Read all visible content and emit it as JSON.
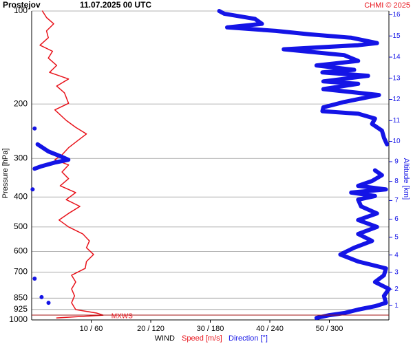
{
  "chart_data": {
    "type": "profile",
    "title": "Prostejov",
    "subtitle": "11.07.2025 00 UTC",
    "source": "CHMI © 2025",
    "xlabel": "WIND",
    "ylabel": "Pressure [hPa]",
    "y2label": "Altitude [km]",
    "annotation": "MXWS",
    "ylim": [
      100,
      1000
    ],
    "yscale": "log",
    "yticks": [
      100,
      200,
      300,
      400,
      500,
      600,
      700,
      850,
      925,
      1000
    ],
    "y2ticks": [
      1,
      2,
      3,
      4,
      5,
      6,
      7,
      8,
      9,
      10,
      11,
      12,
      13,
      14,
      15,
      16
    ],
    "xlim": [
      0,
      60
    ],
    "x2lim": [
      0,
      360
    ],
    "xticks": [
      {
        "value": 10,
        "label": "10 / 60"
      },
      {
        "value": 20,
        "label": "20 / 120"
      },
      {
        "value": 30,
        "label": "30 / 180"
      },
      {
        "value": 40,
        "label": "40 / 240"
      },
      {
        "value": 50,
        "label": "50 / 300"
      }
    ],
    "grid": true,
    "series": [
      {
        "name": "Speed [m/s]",
        "color": "#e8121a",
        "pressure": [
          100,
          105,
          110,
          116,
          122,
          129,
          135,
          142,
          150,
          158,
          166,
          175,
          184,
          199,
          209,
          226,
          238,
          250,
          264,
          277,
          292,
          303,
          315,
          332,
          349,
          368,
          387,
          408,
          429,
          452,
          475,
          500,
          527,
          555,
          584,
          614,
          647,
          681,
          717,
          754,
          794,
          836,
          880,
          926,
          950,
          965,
          985
        ],
        "values": [
          1.8,
          2.5,
          3.7,
          2.5,
          2.8,
          1.4,
          3.5,
          2.8,
          4.2,
          3.0,
          6.2,
          4.2,
          5.5,
          6.2,
          3.9,
          5.8,
          7.4,
          9.2,
          7.6,
          6.2,
          5.1,
          3.9,
          6.2,
          5.1,
          6.2,
          4.8,
          7.4,
          5.8,
          8.1,
          6.2,
          4.6,
          6.2,
          8.6,
          9.7,
          9.2,
          10.4,
          9.2,
          9.0,
          6.7,
          7.4,
          6.7,
          7.2,
          6.7,
          7.4,
          10.9,
          12.0,
          4.2
        ]
      },
      {
        "name": "Direction [°]",
        "color": "#1414e6",
        "axis": "x2",
        "pressure": [
          100,
          102,
          106,
          110,
          113,
          116,
          119,
          122,
          127,
          129,
          133,
          139,
          145,
          150,
          155,
          158,
          162,
          169,
          172,
          179,
          187,
          197,
          205,
          211,
          215,
          223,
          232,
          244,
          257,
          270,
          null,
          240,
          null,
          270,
          285,
          297,
          303,
          309,
          318,
          324,
          null,
          378,
          null,
          328,
          340,
          355,
          368,
          378,
          387,
          397,
          408,
          429,
          452,
          475,
          500,
          527,
          555,
          584,
          614,
          647,
          681,
          717,
          754,
          794,
          836,
          880,
          903,
          926,
          950,
          965,
          985,
          null,
          735,
          null,
          844,
          null,
          880
        ],
        "values": [
          189,
          194,
          225,
          232,
          197,
          246,
          280,
          322,
          348,
          329,
          254,
          315,
          329,
          287,
          325,
          293,
          339,
          294,
          329,
          294,
          350,
          315,
          294,
          293,
          329,
          346,
          343,
          353,
          355,
          358,
          null,
          3,
          null,
          6,
          17,
          31,
          37,
          24,
          10,
          3,
          null,
          1,
          null,
          346,
          353,
          343,
          329,
          357,
          322,
          346,
          329,
          332,
          348,
          329,
          348,
          329,
          343,
          325,
          311,
          329,
          357,
          355,
          346,
          360,
          355,
          357,
          346,
          329,
          315,
          300,
          287,
          null,
          3,
          null,
          10,
          null,
          17
        ]
      }
    ]
  }
}
